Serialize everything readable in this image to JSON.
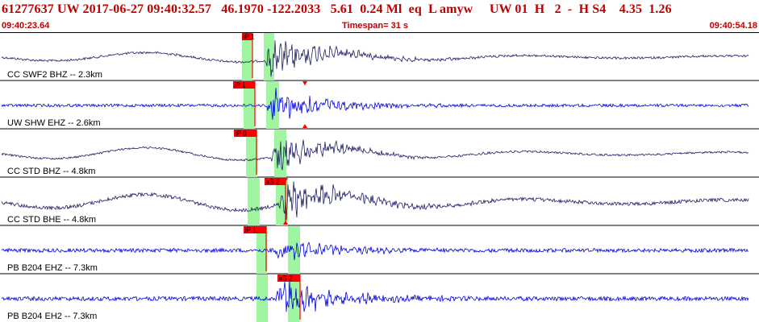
{
  "header": {
    "title": "61277637 UW 2017-06-27 09:40:32.57   46.1970 -122.2033   5.61  0.24 Ml  eq  L amyw     UW 01  H   2  -  H S4    4.35  1.26",
    "start_time": "09:40:23.64",
    "timespan": "Timespan=  31 s",
    "end_time": "09:40:54.18"
  },
  "colors": {
    "header_text": "#c00000",
    "trace_blue": "#0000e0",
    "trace_dark": "#1e1e64",
    "pick": "#ff0000",
    "window": "#a0f5a0"
  },
  "traces": [
    {
      "label": "CC SWF2 BHZ -- 2.3km",
      "pick": "iP 1",
      "s_marker": false
    },
    {
      "label": "UW SHW EHZ -- 2.6km",
      "pick": "iP 1",
      "s_marker": true
    },
    {
      "label": "CC STD BHZ -- 4.8km",
      "pick": "iP 0",
      "s_marker": false
    },
    {
      "label": "CC STD BHE -- 4.8km",
      "pick": "eS 2",
      "s_marker": true
    },
    {
      "label": "PB B204 EHZ -- 7.3km",
      "pick": "iP 1",
      "s_marker": false
    },
    {
      "label": "PB B204 EH2 -- 7.3km",
      "pick": "eS 2",
      "s_marker": false
    }
  ]
}
